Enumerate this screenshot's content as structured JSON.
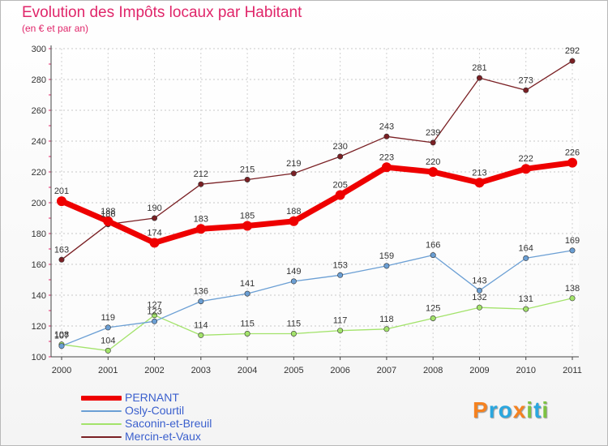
{
  "chart_data": {
    "type": "line",
    "title": "Evolution des Impôts locaux par Habitant",
    "subtitle": "(en € et par an)",
    "xlabel": "",
    "ylabel": "",
    "ylim": [
      100,
      300
    ],
    "yticks": [
      100,
      120,
      140,
      160,
      180,
      200,
      220,
      240,
      260,
      280,
      300
    ],
    "grid": true,
    "categories": [
      "2000",
      "2001",
      "2002",
      "2003",
      "2004",
      "2005",
      "2006",
      "2007",
      "2008",
      "2009",
      "2010",
      "2011"
    ],
    "series": [
      {
        "name": "Mercin-et-Vaux",
        "color": "#7a2024",
        "values": [
          163,
          186,
          190,
          212,
          215,
          219,
          230,
          243,
          239,
          281,
          273,
          292
        ]
      },
      {
        "name": "Saconin-et-Breuil",
        "color": "#a3e36b",
        "values": [
          108,
          104,
          127,
          114,
          115,
          115,
          117,
          118,
          125,
          132,
          131,
          138
        ]
      },
      {
        "name": "Osly-Courtil",
        "color": "#6b9fd4",
        "values": [
          107,
          119,
          123,
          136,
          141,
          149,
          153,
          159,
          166,
          143,
          164,
          169
        ]
      },
      {
        "name": "PERNANT",
        "color": "#ee0000",
        "values": [
          201,
          188,
          174,
          183,
          185,
          188,
          205,
          223,
          220,
          213,
          222,
          226
        ]
      }
    ],
    "legend_position": "bottom-left"
  },
  "legend": [
    {
      "label": "PERNANT",
      "color": "#ee0000"
    },
    {
      "label": "Osly-Courtil",
      "color": "#6b9fd4"
    },
    {
      "label": "Saconin-et-Breuil",
      "color": "#a3e36b"
    },
    {
      "label": "Mercin-et-Vaux",
      "color": "#7a2024"
    }
  ],
  "logo": {
    "text": "Proxiti",
    "letters": [
      {
        "ch": "P",
        "color": "#f58220"
      },
      {
        "ch": "r",
        "color": "#2aa7df"
      },
      {
        "ch": "o",
        "color": "#2aa7df"
      },
      {
        "ch": "x",
        "color": "#f58220"
      },
      {
        "ch": "i",
        "color": "#7dc242"
      },
      {
        "ch": "t",
        "color": "#2aa7df"
      },
      {
        "ch": "i",
        "color": "#7dc242"
      }
    ]
  }
}
